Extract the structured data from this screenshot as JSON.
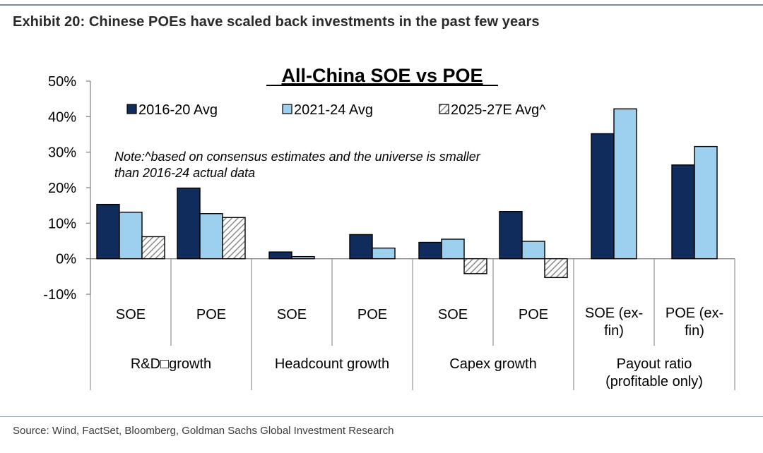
{
  "exhibit_title": "Exhibit 20: Chinese POEs have scaled back investments in the past few years",
  "source": "Source: Wind, FactSet, Bloomberg, Goldman Sachs Global Investment Research",
  "chart_data": {
    "type": "bar",
    "title": "All-China SOE vs POE",
    "note_lines": [
      "Note:^based on consensus estimates and the universe is smaller",
      "than 2016-24 actual data"
    ],
    "ylim": [
      -10,
      50
    ],
    "yticks": [
      "50%",
      "40%",
      "30%",
      "20%",
      "10%",
      "0%",
      "-10%"
    ],
    "legend_position": "top",
    "groups": [
      {
        "label": "R&D□growth",
        "categories": [
          [
            "SOE"
          ],
          [
            "POE"
          ]
        ]
      },
      {
        "label": "Headcount growth",
        "categories": [
          [
            "SOE"
          ],
          [
            "POE"
          ]
        ]
      },
      {
        "label": "Capex growth",
        "categories": [
          [
            "SOE"
          ],
          [
            "POE"
          ]
        ]
      },
      {
        "label": "Payout ratio|(profitable only)",
        "categories": [
          [
            "SOE (ex-",
            "fin)"
          ],
          [
            "POE (ex-",
            "fin)"
          ]
        ]
      }
    ],
    "series": [
      {
        "name": "2016-20 Avg",
        "color": "#0f2c5c",
        "values": [
          15.3,
          19.9,
          1.9,
          6.8,
          4.6,
          13.3,
          35.2,
          26.4
        ]
      },
      {
        "name": "2021-24 Avg",
        "color": "#9dcfef",
        "values": [
          13.1,
          12.7,
          0.6,
          3.0,
          5.5,
          4.9,
          42.2,
          31.6
        ]
      },
      {
        "name": "2025-27E Avg^",
        "color": "hatch",
        "values": [
          6.2,
          11.6,
          null,
          null,
          -4.2,
          -5.3,
          null,
          null
        ]
      }
    ]
  }
}
